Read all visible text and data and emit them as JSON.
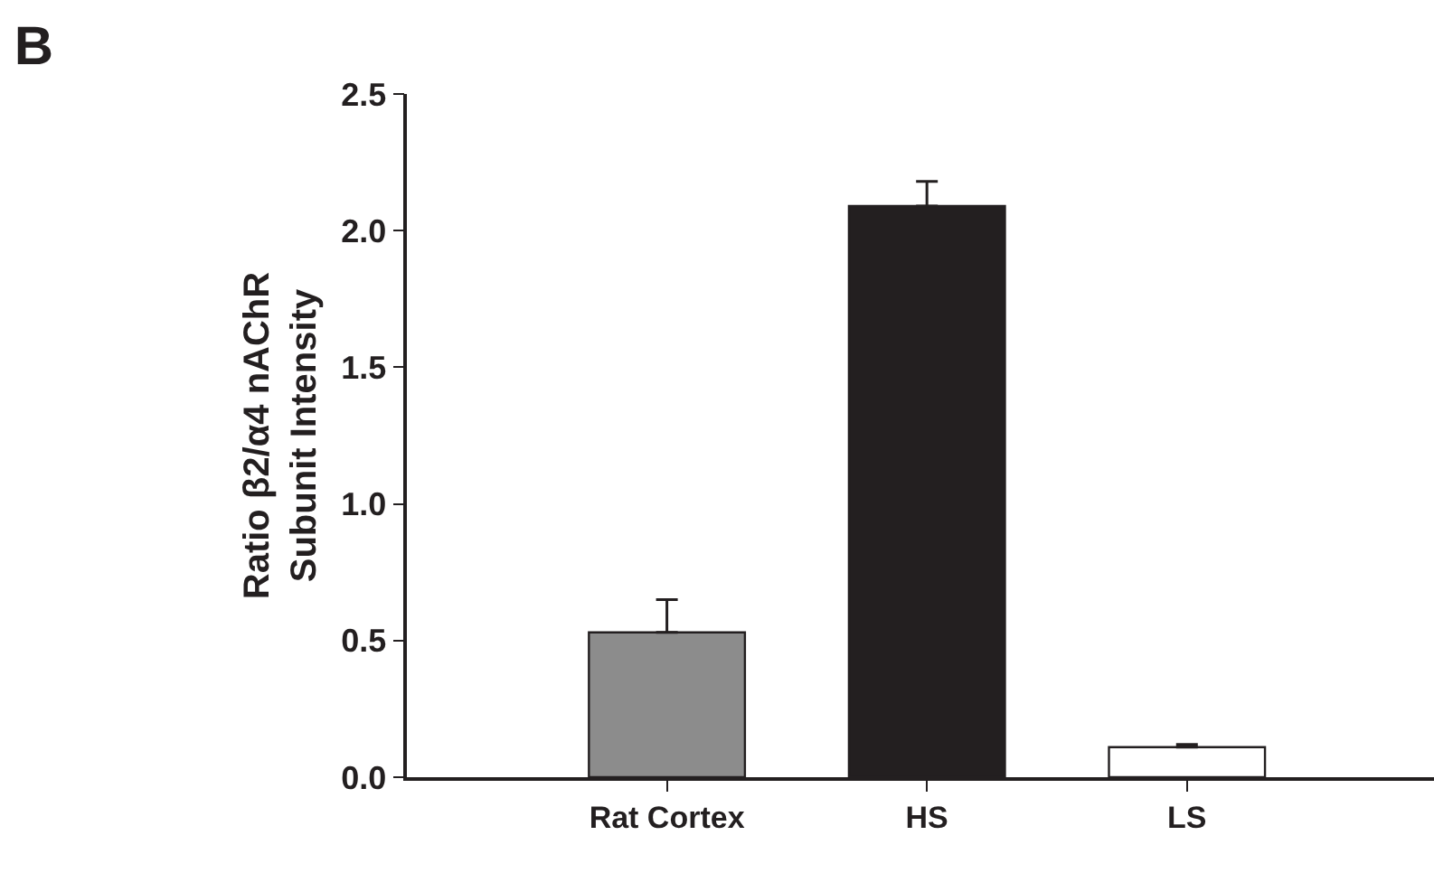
{
  "chart_data": {
    "type": "bar",
    "title": "B",
    "ylabel": "Ratio β2/α4 nAChR\nSubunit Intensity",
    "categories": [
      "Rat Cortex",
      "HS",
      "LS"
    ],
    "values": [
      0.53,
      2.09,
      0.11
    ],
    "errors": [
      0.12,
      0.09,
      0.01
    ],
    "colors": [
      "#8c8c8c",
      "#231f20",
      "#ffffff"
    ],
    "ylim": [
      0,
      2.5
    ],
    "yticks": [
      {
        "value": 0,
        "label": "0.0"
      },
      {
        "value": 0.5,
        "label": "0.5"
      },
      {
        "value": 1,
        "label": "1.0"
      },
      {
        "value": 1.5,
        "label": "1.5"
      },
      {
        "value": 2,
        "label": "2.0"
      },
      {
        "value": 2.5,
        "label": "2.5"
      }
    ]
  }
}
